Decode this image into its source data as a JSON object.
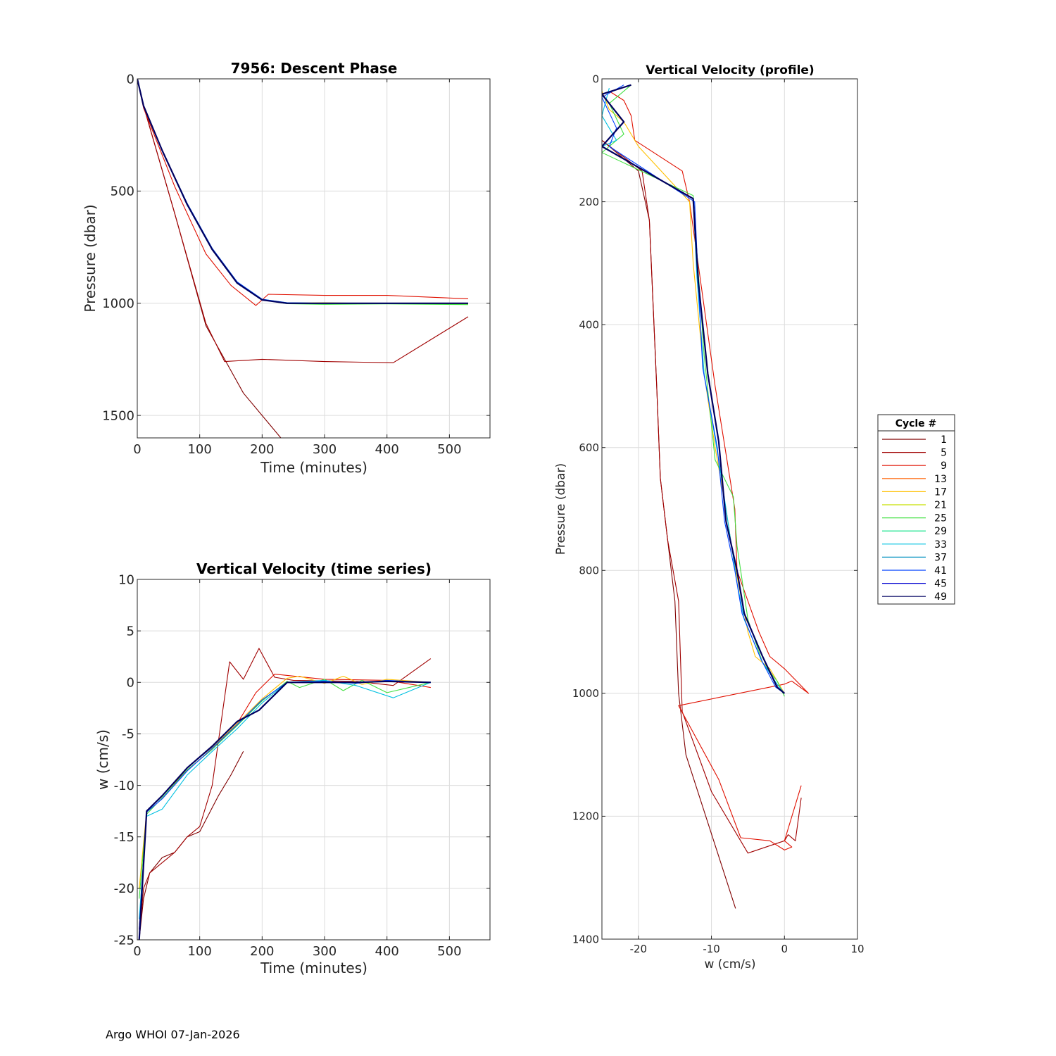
{
  "footer": "Argo WHOI 07-Jan-2026",
  "legend": {
    "title": "Cycle #",
    "entries": [
      {
        "label": "1",
        "color": "#800000"
      },
      {
        "label": "5",
        "color": "#a00000"
      },
      {
        "label": "9",
        "color": "#e01000"
      },
      {
        "label": "13",
        "color": "#ff6000"
      },
      {
        "label": "17",
        "color": "#ffc000"
      },
      {
        "label": "21",
        "color": "#c8e000"
      },
      {
        "label": "25",
        "color": "#40e040"
      },
      {
        "label": "29",
        "color": "#00e080"
      },
      {
        "label": "33",
        "color": "#00c0e0"
      },
      {
        "label": "37",
        "color": "#0090c0"
      },
      {
        "label": "41",
        "color": "#0040ff"
      },
      {
        "label": "45",
        "color": "#0000d0"
      },
      {
        "label": "49",
        "color": "#000060"
      }
    ]
  },
  "chart_data": [
    {
      "id": "descent",
      "type": "line",
      "title": "7956: Descent Phase",
      "xlabel": "Time (minutes)",
      "ylabel": "Pressure (dbar)",
      "xlim": [
        0,
        565
      ],
      "ylim": [
        0,
        1600
      ],
      "y_reversed": true,
      "xticks": [
        0,
        100,
        200,
        300,
        400,
        500
      ],
      "yticks": [
        0,
        500,
        1000,
        1500
      ],
      "grid": true,
      "series": [
        {
          "name": "1",
          "color": "#800000",
          "x": [
            0,
            10,
            60,
            110,
            140,
            170,
            200,
            230
          ],
          "y": [
            0,
            120,
            600,
            1100,
            1250,
            1400,
            1500,
            1600
          ]
        },
        {
          "name": "5",
          "color": "#a00000",
          "x": [
            0,
            10,
            60,
            110,
            140,
            200,
            300,
            410,
            530
          ],
          "y": [
            0,
            120,
            600,
            1090,
            1260,
            1250,
            1260,
            1265,
            1060
          ]
        },
        {
          "name": "9",
          "color": "#e01000",
          "x": [
            0,
            10,
            60,
            110,
            150,
            190,
            210,
            300,
            400,
            530
          ],
          "y": [
            0,
            130,
            480,
            780,
            920,
            1010,
            960,
            965,
            965,
            980
          ]
        },
        {
          "name": "17",
          "color": "#ffc000",
          "x": [
            0,
            10,
            40,
            80,
            120,
            160,
            200,
            240,
            300,
            400,
            530
          ],
          "y": [
            0,
            120,
            320,
            560,
            760,
            910,
            985,
            1000,
            998,
            1002,
            1003
          ]
        },
        {
          "name": "25",
          "color": "#40e040",
          "x": [
            0,
            10,
            40,
            80,
            120,
            160,
            200,
            240,
            300,
            400,
            530
          ],
          "y": [
            0,
            120,
            320,
            560,
            760,
            910,
            985,
            1002,
            1005,
            1003,
            1006
          ]
        },
        {
          "name": "33",
          "color": "#00c0e0",
          "x": [
            0,
            10,
            40,
            80,
            120,
            160,
            200,
            240,
            300,
            400,
            530
          ],
          "y": [
            0,
            120,
            320,
            555,
            755,
            905,
            982,
            998,
            1000,
            1001,
            1000
          ]
        },
        {
          "name": "41",
          "color": "#0040ff",
          "x": [
            0,
            10,
            40,
            80,
            120,
            160,
            200,
            240,
            300,
            400,
            530
          ],
          "y": [
            0,
            120,
            320,
            555,
            755,
            905,
            982,
            998,
            1000,
            1001,
            1000
          ]
        },
        {
          "name": "49",
          "color": "#000060",
          "x": [
            0,
            10,
            40,
            80,
            120,
            160,
            200,
            240,
            300,
            400,
            530
          ],
          "y": [
            0,
            120,
            320,
            560,
            760,
            910,
            985,
            1000,
            1000,
            1000,
            1000
          ]
        }
      ]
    },
    {
      "id": "vv_time",
      "type": "line",
      "title": "Vertical Velocity (time series)",
      "xlabel": "Time (minutes)",
      "ylabel": "w (cm/s)",
      "xlim": [
        0,
        565
      ],
      "ylim": [
        -25,
        10
      ],
      "xticks": [
        0,
        100,
        200,
        300,
        400,
        500
      ],
      "yticks": [
        10,
        5,
        0,
        -5,
        -10,
        -15,
        -20,
        -25
      ],
      "grid": true,
      "series": [
        {
          "name": "1",
          "color": "#800000",
          "x": [
            3,
            10,
            20,
            40,
            60,
            80,
            100,
            130,
            150,
            170
          ],
          "y": [
            -25,
            -21,
            -18.5,
            -17,
            -16.5,
            -15,
            -14.5,
            -11,
            -9,
            -6.7
          ]
        },
        {
          "name": "5",
          "color": "#a00000",
          "x": [
            3,
            10,
            20,
            40,
            60,
            80,
            100,
            120,
            148,
            170,
            195,
            220,
            250,
            350,
            410,
            470
          ],
          "y": [
            -25,
            -20,
            -18.5,
            -17.5,
            -16.5,
            -15,
            -14,
            -10,
            2,
            0.3,
            3.3,
            0.5,
            0.2,
            0.1,
            -0.3,
            2.3
          ]
        },
        {
          "name": "9",
          "color": "#e01000",
          "x": [
            3,
            15,
            40,
            80,
            120,
            160,
            190,
            220,
            300,
            400,
            470
          ],
          "y": [
            -24,
            -12.5,
            -11,
            -8.5,
            -6.5,
            -4,
            -1,
            0.8,
            0.3,
            0.2,
            -0.5
          ]
        },
        {
          "name": "17",
          "color": "#ffc000",
          "x": [
            3,
            15,
            40,
            80,
            120,
            160,
            200,
            240,
            260,
            300,
            330,
            360,
            400,
            470
          ],
          "y": [
            -20,
            -12.5,
            -11,
            -8.3,
            -6.3,
            -4,
            -1.6,
            0.4,
            0.6,
            -0.1,
            0.6,
            -0.2,
            0.3,
            0
          ]
        },
        {
          "name": "25",
          "color": "#40e040",
          "x": [
            3,
            15,
            40,
            80,
            120,
            160,
            200,
            240,
            260,
            300,
            330,
            360,
            400,
            470
          ],
          "y": [
            -21,
            -12.8,
            -11.2,
            -8.5,
            -6.5,
            -4.2,
            -1.8,
            0.1,
            -0.5,
            0.3,
            -0.8,
            0.2,
            -1,
            0
          ]
        },
        {
          "name": "33",
          "color": "#00c0e0",
          "x": [
            3,
            15,
            40,
            80,
            120,
            160,
            200,
            240,
            300,
            350,
            410,
            470
          ],
          "y": [
            -23,
            -13,
            -12.3,
            -9,
            -6.7,
            -4.5,
            -2,
            0,
            0.2,
            -0.3,
            -1.5,
            0
          ]
        },
        {
          "name": "41",
          "color": "#0040ff",
          "x": [
            3,
            15,
            40,
            80,
            120,
            160,
            200,
            240,
            300,
            350,
            400,
            470
          ],
          "y": [
            -24,
            -12.6,
            -11.3,
            -8.6,
            -6.4,
            -4.1,
            -1.7,
            0,
            0.1,
            -0.1,
            0.2,
            0
          ]
        },
        {
          "name": "49",
          "color": "#000060",
          "x": [
            3,
            15,
            40,
            80,
            120,
            160,
            195,
            240,
            300,
            350,
            400,
            470
          ],
          "y": [
            -25,
            -12.5,
            -11,
            -8.3,
            -6.2,
            -3.8,
            -2.7,
            0,
            0,
            0,
            0.1,
            0
          ]
        }
      ]
    },
    {
      "id": "vv_profile",
      "type": "line",
      "title": "Vertical Velocity (profile)",
      "xlabel": "w (cm/s)",
      "ylabel": "Pressure (dbar)",
      "xlim": [
        -25,
        10
      ],
      "ylim": [
        0,
        1400
      ],
      "y_reversed": true,
      "xticks": [
        -20,
        -10,
        0,
        10
      ],
      "yticks": [
        0,
        200,
        400,
        600,
        800,
        1000,
        1200,
        1400
      ],
      "grid": true,
      "series": [
        {
          "name": "1",
          "color": "#800000",
          "x": [
            -25,
            -20,
            -18.5,
            -17.5,
            -17,
            -16,
            -15,
            -14.5,
            -13.5,
            -6.7
          ],
          "y": [
            100,
            150,
            230,
            500,
            650,
            750,
            850,
            1000,
            1100,
            1350
          ]
        },
        {
          "name": "5",
          "color": "#a00000",
          "x": [
            -25,
            -19.5,
            -18.5,
            -17.5,
            -17,
            -16,
            -14.5,
            -14,
            -10,
            -5,
            0,
            0.5,
            1.5,
            2.3
          ],
          "y": [
            100,
            150,
            230,
            500,
            650,
            750,
            850,
            1030,
            1160,
            1260,
            1240,
            1230,
            1240,
            1170
          ]
        },
        {
          "name": "9",
          "color": "#e01000",
          "x": [
            -24,
            -22,
            -21,
            -20.5,
            -14,
            -13,
            -9.5,
            -6.8,
            -6.5,
            -3.5,
            -2,
            0,
            3.3,
            1,
            0,
            -14.5,
            -9,
            -6,
            -2,
            0,
            1,
            0,
            2.3
          ],
          "y": [
            20,
            35,
            60,
            100,
            150,
            200,
            500,
            700,
            800,
            900,
            940,
            960,
            1000,
            980,
            985,
            1020,
            1140,
            1235,
            1240,
            1255,
            1250,
            1240,
            1150
          ]
        },
        {
          "name": "17",
          "color": "#ffc000",
          "x": [
            -25,
            -24,
            -22,
            -20,
            -13,
            -12.5,
            -11,
            -9.5,
            -8,
            -7,
            -5,
            -4,
            -2,
            0
          ],
          "y": [
            20,
            50,
            70,
            110,
            200,
            300,
            480,
            600,
            700,
            780,
            900,
            940,
            960,
            1000
          ]
        },
        {
          "name": "25",
          "color": "#40e040",
          "x": [
            -21,
            -24,
            -22,
            -25,
            -12.5,
            -12,
            -11,
            -9.5,
            -7,
            -6.5,
            -5,
            -3,
            -1,
            0
          ],
          "y": [
            10,
            40,
            90,
            120,
            190,
            280,
            450,
            620,
            680,
            760,
            880,
            950,
            980,
            1005
          ]
        },
        {
          "name": "33",
          "color": "#00c0e0",
          "x": [
            -24,
            -25,
            -23,
            -25,
            -12.5,
            -12,
            -11,
            -9,
            -8,
            -6.5,
            -5.5,
            -3,
            -1,
            0
          ],
          "y": [
            15,
            60,
            100,
            110,
            195,
            320,
            480,
            620,
            700,
            820,
            880,
            950,
            985,
            1000
          ]
        },
        {
          "name": "41",
          "color": "#0040ff",
          "x": [
            -22,
            -25,
            -23,
            -24,
            -12.3,
            -11.8,
            -11.2,
            -9.2,
            -8.2,
            -6.8,
            -5.8,
            -3.2,
            -1.2,
            0
          ],
          "y": [
            10,
            30,
            80,
            110,
            200,
            330,
            470,
            600,
            720,
            800,
            870,
            945,
            990,
            1000
          ]
        },
        {
          "name": "49",
          "color": "#000060",
          "x": [
            -21,
            -25,
            -22,
            -25,
            -12.5,
            -11.8,
            -10.5,
            -9,
            -8,
            -6.5,
            -5.5,
            -3,
            -1,
            0
          ],
          "y": [
            10,
            25,
            70,
            110,
            195,
            330,
            480,
            590,
            720,
            800,
            870,
            940,
            990,
            1000
          ]
        }
      ]
    }
  ]
}
